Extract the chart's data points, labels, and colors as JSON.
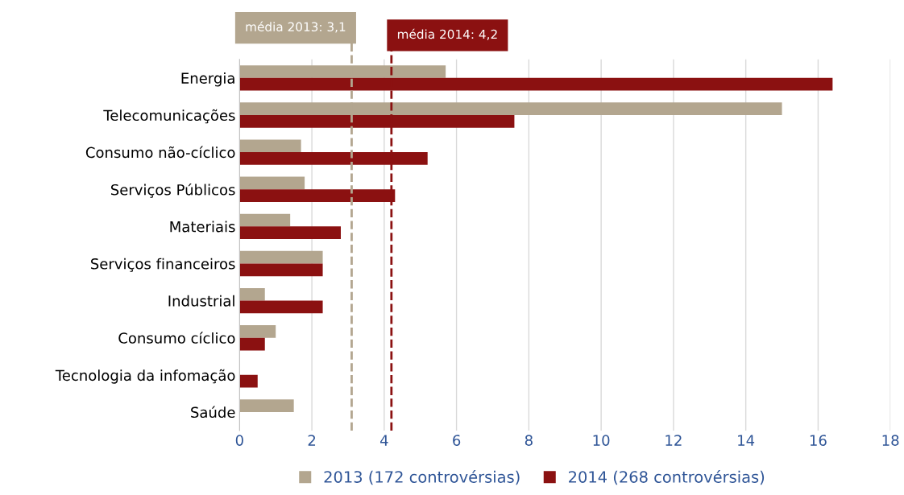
{
  "chart_data": {
    "type": "bar",
    "orientation": "horizontal",
    "categories": [
      "Energia",
      "Telecomunicações",
      "Consumo não-cíclico",
      "Serviços Públicos",
      "Materiais",
      "Serviços financeiros",
      "Industrial",
      "Consumo cíclico",
      "Tecnologia da infomação",
      "Saúde"
    ],
    "series": [
      {
        "name": "2013 (172 controvérsias)",
        "color": "#b3a68f",
        "values": [
          5.7,
          15.0,
          1.7,
          1.8,
          1.4,
          2.3,
          0.7,
          1.0,
          null,
          1.5
        ]
      },
      {
        "name": "2014 (268 controvérsias)",
        "color": "#8b1111",
        "values": [
          16.4,
          7.6,
          5.2,
          4.3,
          2.8,
          2.3,
          2.3,
          0.7,
          0.5,
          null
        ]
      }
    ],
    "xlim": [
      0,
      18
    ],
    "xticks": [
      0,
      2,
      4,
      6,
      8,
      10,
      12,
      14,
      16,
      18
    ],
    "grid": "x",
    "legend": "bottom",
    "ref_lines": [
      {
        "axis": "x",
        "value": 3.1,
        "label": "média 2013: 3,1",
        "color": "#b3a68f",
        "line_style": "dashed"
      },
      {
        "axis": "x",
        "value": 4.2,
        "label": "média 2014: 4,2",
        "color": "#8b1111",
        "line_style": "dashed"
      }
    ]
  }
}
